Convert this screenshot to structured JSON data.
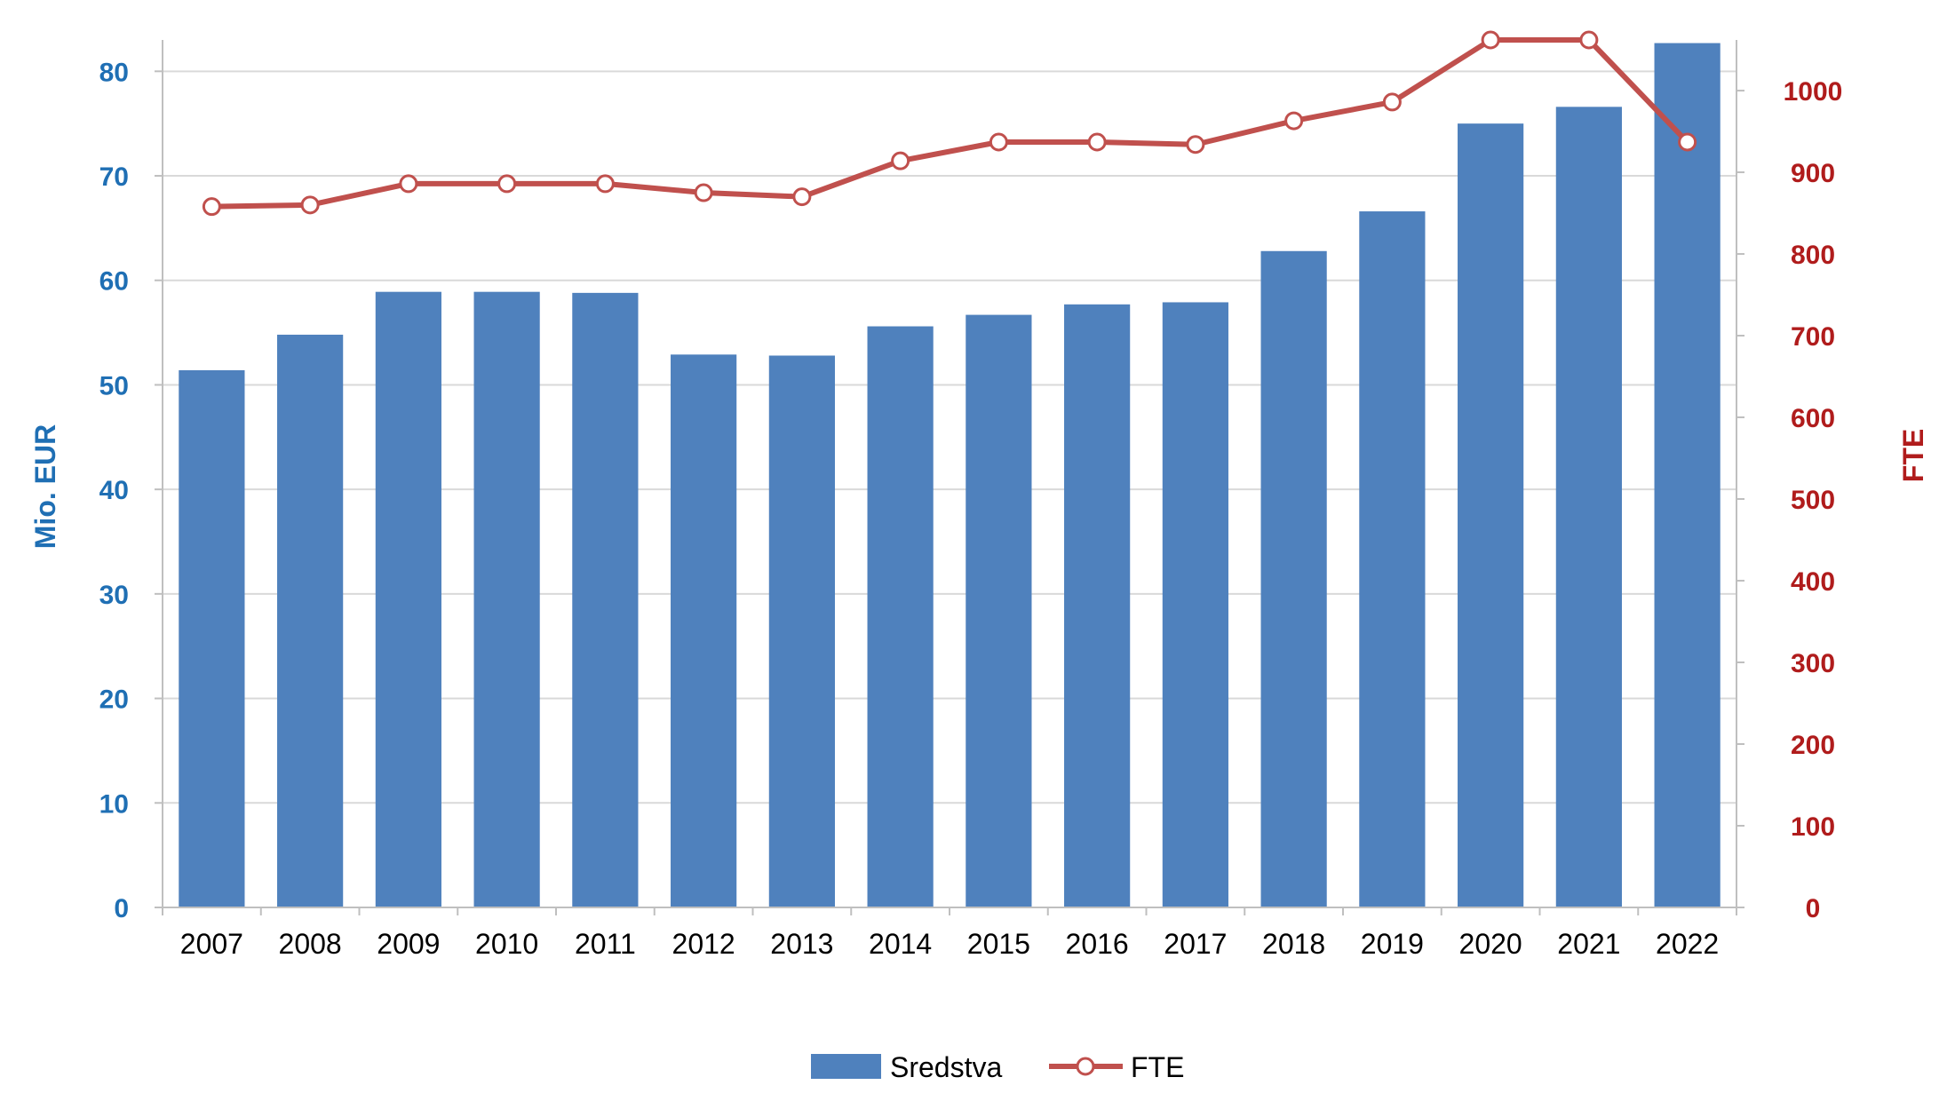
{
  "colors": {
    "bar": "#4f81bd",
    "line": "#c0504d",
    "left_axis_text": "#1f6fb4",
    "right_axis_text": "#b01c1c",
    "grid": "#d9d9d9",
    "axis": "#bfbfbf"
  },
  "chart_data": {
    "type": "bar",
    "categories": [
      "2007",
      "2008",
      "2009",
      "2010",
      "2011",
      "2012",
      "2013",
      "2014",
      "2015",
      "2016",
      "2017",
      "2018",
      "2019",
      "2020",
      "2021",
      "2022"
    ],
    "series": [
      {
        "name": "Sredstva",
        "type": "bar",
        "axis": "left",
        "values": [
          51.4,
          54.8,
          58.9,
          58.9,
          58.8,
          52.9,
          52.8,
          55.6,
          56.7,
          57.7,
          57.9,
          62.8,
          66.6,
          75.0,
          76.6,
          82.7
        ]
      },
      {
        "name": "FTE",
        "type": "line",
        "axis": "right",
        "values": [
          858,
          860,
          886,
          886,
          886,
          875,
          870,
          914,
          937,
          937,
          934,
          963,
          986,
          1062,
          1062,
          937
        ]
      }
    ],
    "ylabel": "Mio. EUR",
    "y2label": "FTE",
    "ylim": [
      0,
      83
    ],
    "y2lim": [
      0,
      1062
    ],
    "yticks": [
      "0",
      "10",
      "20",
      "30",
      "40",
      "50",
      "60",
      "70",
      "80"
    ],
    "y2ticks": [
      "0",
      "100",
      "200",
      "300",
      "400",
      "500",
      "600",
      "700",
      "800",
      "900",
      "1000"
    ],
    "grid": true,
    "legend": "bottom"
  }
}
